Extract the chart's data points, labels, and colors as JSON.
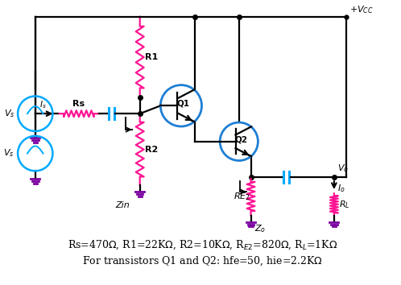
{
  "bg_color": "#ffffff",
  "line_color": "#000000",
  "resistor_color": "#ff1493",
  "capacitor_color": "#00aaff",
  "transistor_circle_color": "#1e7fd4",
  "ground_color": "#7b00a0",
  "label_color": "#000000",
  "title_line1": "Rs=470Ω, R1=22KΩ, R2=10KΩ, R_{E2}=820Ω, R_L=1KΩ",
  "title_line2": "For transistors Q1 and Q2: hfe=50, hie=2.2KΩ",
  "figw": 4.98,
  "figh": 3.54,
  "dpi": 100
}
